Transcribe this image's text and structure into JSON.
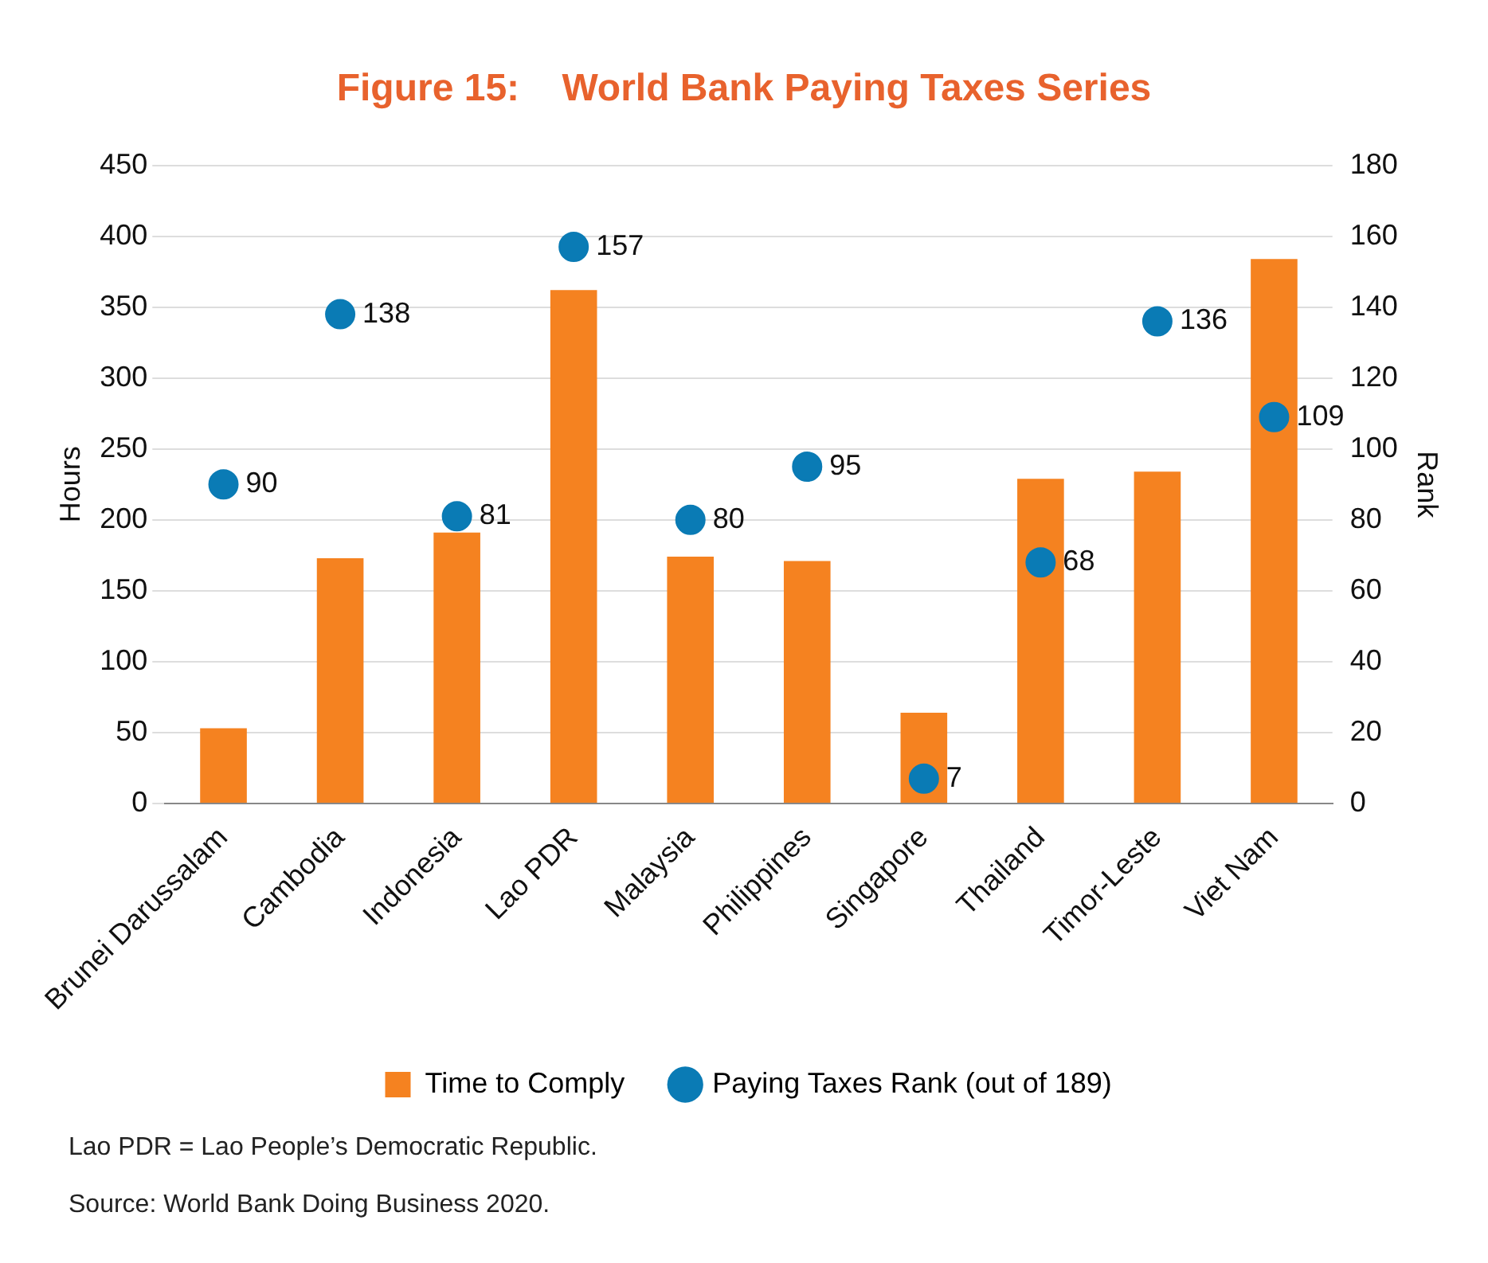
{
  "chart_data": {
    "type": "bar",
    "title": "Figure 15:    World Bank Paying Taxes Series",
    "ylabel": "Hours",
    "y2label": "Rank",
    "categories": [
      "Brunei Darussalam",
      "Cambodia",
      "Indonesia",
      "Lao PDR",
      "Malaysia",
      "Philippines",
      "Singapore",
      "Thailand",
      "Timor-Leste",
      "Viet Nam"
    ],
    "series": [
      {
        "name": "Time to Comply",
        "color": "#f58220",
        "values": [
          53,
          173,
          191,
          362,
          174,
          171,
          64,
          229,
          234,
          384
        ]
      },
      {
        "name": "Paying Taxes Rank (out of 189)",
        "type": "scatter",
        "axis": "y2",
        "color": "#0a7bb5",
        "values": [
          90,
          138,
          81,
          157,
          80,
          95,
          7,
          68,
          136,
          109
        ],
        "value_labels": [
          "90",
          "138",
          "81",
          "157",
          "80",
          "95",
          "7",
          "68",
          "136",
          "109"
        ]
      }
    ],
    "ylim": [
      0,
      450
    ],
    "yticks": [
      0,
      50,
      100,
      150,
      200,
      250,
      300,
      350,
      400,
      450
    ],
    "y2lim": [
      0,
      180
    ],
    "y2ticks": [
      0,
      20,
      40,
      60,
      80,
      100,
      120,
      140,
      160,
      180
    ],
    "grid": "y",
    "legend": "bottom",
    "marker": "circle",
    "annotations": [
      "Lao PDR = Lao People’s Democratic Republic.",
      "Source: World Bank Doing Business 2020."
    ]
  }
}
